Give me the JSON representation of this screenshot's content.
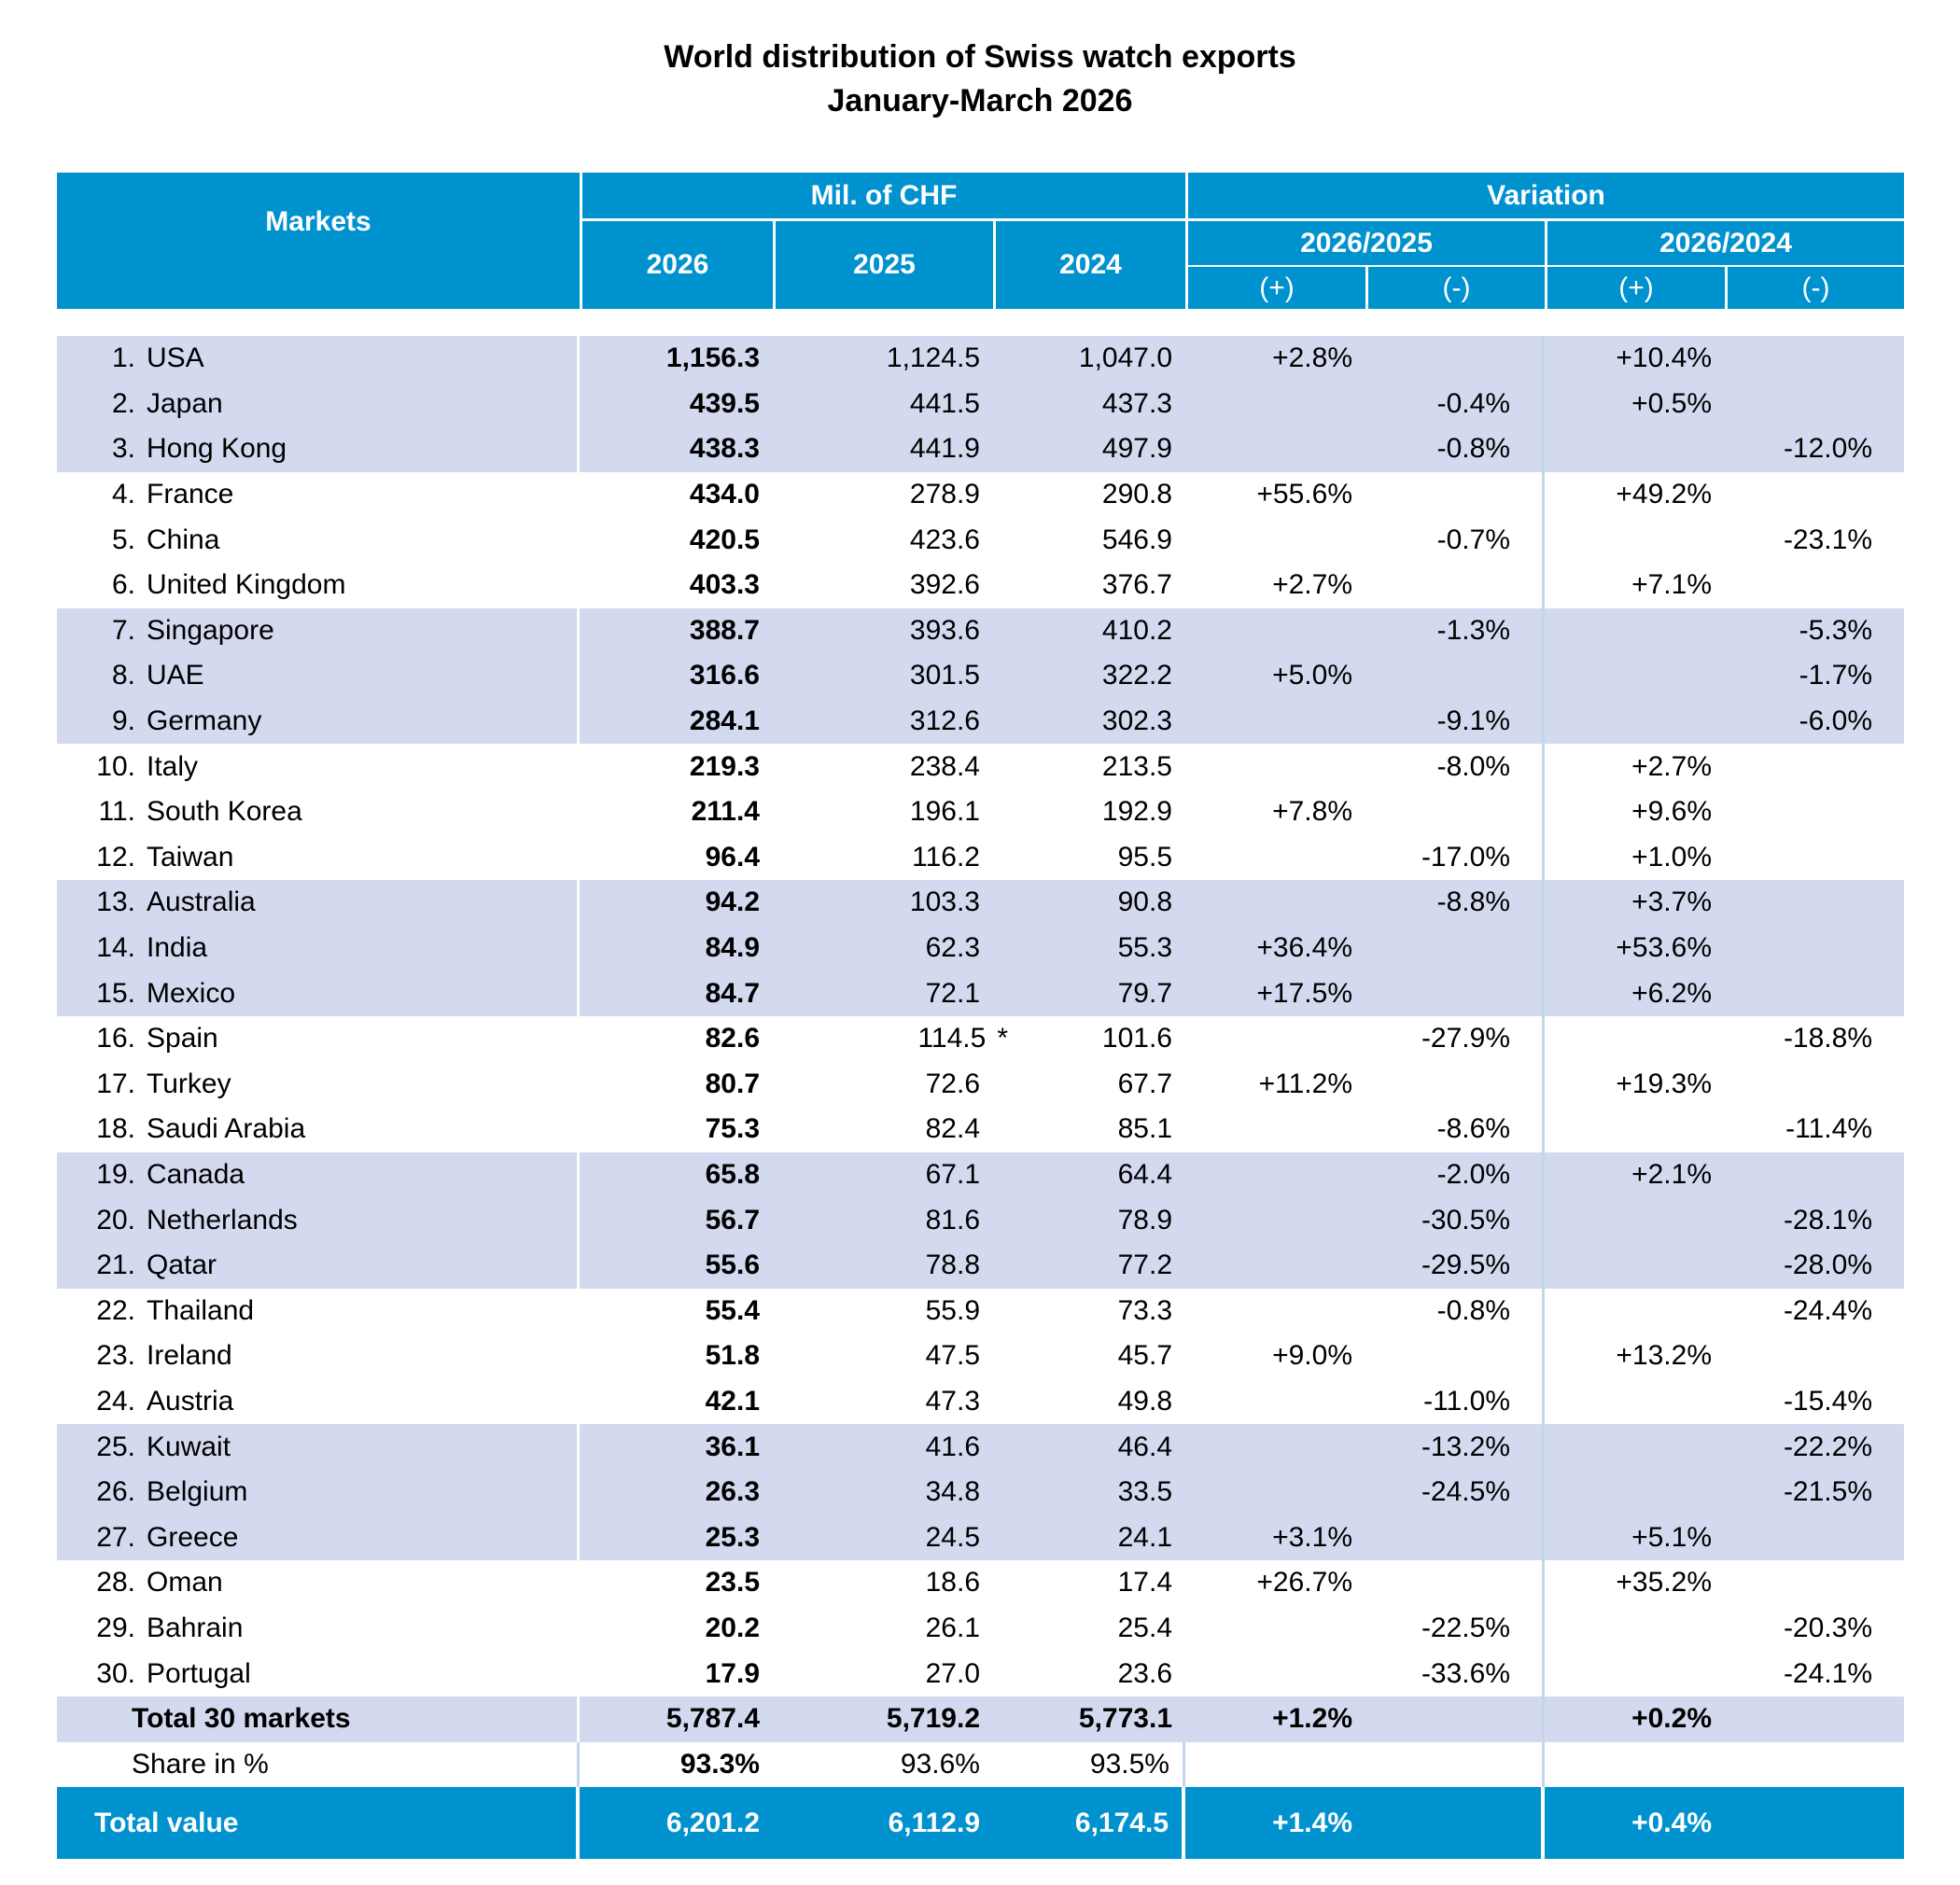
{
  "title": "World distribution of Swiss watch exports",
  "subtitle": "January-March 2026",
  "header": {
    "markets": "Markets",
    "mil_chf": "Mil. of CHF",
    "variation": "Variation",
    "years": [
      "2026",
      "2025",
      "2024"
    ],
    "var1": "2026/2025",
    "var2": "2026/2024",
    "plus": "(+)",
    "minus": "(-)"
  },
  "rows": [
    [
      "1.",
      "USA",
      "1,156.3",
      "1,124.5",
      "1,047.0",
      "+2.8%",
      "",
      "+10.4%",
      ""
    ],
    [
      "2.",
      "Japan",
      "439.5",
      "441.5",
      "437.3",
      "",
      "-0.4%",
      "+0.5%",
      ""
    ],
    [
      "3.",
      "Hong Kong",
      "438.3",
      "441.9",
      "497.9",
      "",
      "-0.8%",
      "",
      "-12.0%"
    ],
    [
      "4.",
      "France",
      "434.0",
      "278.9",
      "290.8",
      "+55.6%",
      "",
      "+49.2%",
      ""
    ],
    [
      "5.",
      "China",
      "420.5",
      "423.6",
      "546.9",
      "",
      "-0.7%",
      "",
      "-23.1%"
    ],
    [
      "6.",
      "United Kingdom",
      "403.3",
      "392.6",
      "376.7",
      "+2.7%",
      "",
      "+7.1%",
      ""
    ],
    [
      "7.",
      "Singapore",
      "388.7",
      "393.6",
      "410.2",
      "",
      "-1.3%",
      "",
      "-5.3%"
    ],
    [
      "8.",
      "UAE",
      "316.6",
      "301.5",
      "322.2",
      "+5.0%",
      "",
      "",
      "-1.7%"
    ],
    [
      "9.",
      "Germany",
      "284.1",
      "312.6",
      "302.3",
      "",
      "-9.1%",
      "",
      "-6.0%"
    ],
    [
      "10.",
      "Italy",
      "219.3",
      "238.4",
      "213.5",
      "",
      "-8.0%",
      "+2.7%",
      ""
    ],
    [
      "11.",
      "South Korea",
      "211.4",
      "196.1",
      "192.9",
      "+7.8%",
      "",
      "+9.6%",
      ""
    ],
    [
      "12.",
      "Taiwan",
      "96.4",
      "116.2",
      "95.5",
      "",
      "-17.0%",
      "+1.0%",
      ""
    ],
    [
      "13.",
      "Australia",
      "94.2",
      "103.3",
      "90.8",
      "",
      "-8.8%",
      "+3.7%",
      ""
    ],
    [
      "14.",
      "India",
      "84.9",
      "62.3",
      "55.3",
      "+36.4%",
      "",
      "+53.6%",
      ""
    ],
    [
      "15.",
      "Mexico",
      "84.7",
      "72.1",
      "79.7",
      "+17.5%",
      "",
      "+6.2%",
      ""
    ],
    [
      "16.",
      "Spain",
      "82.6",
      "114.5",
      "101.6",
      "",
      "-27.9%",
      "",
      "-18.8%"
    ],
    [
      "17.",
      "Turkey",
      "80.7",
      "72.6",
      "67.7",
      "+11.2%",
      "",
      "+19.3%",
      ""
    ],
    [
      "18.",
      "Saudi Arabia",
      "75.3",
      "82.4",
      "85.1",
      "",
      "-8.6%",
      "",
      "-11.4%"
    ],
    [
      "19.",
      "Canada",
      "65.8",
      "67.1",
      "64.4",
      "",
      "-2.0%",
      "+2.1%",
      ""
    ],
    [
      "20.",
      "Netherlands",
      "56.7",
      "81.6",
      "78.9",
      "",
      "-30.5%",
      "",
      "-28.1%"
    ],
    [
      "21.",
      "Qatar",
      "55.6",
      "78.8",
      "77.2",
      "",
      "-29.5%",
      "",
      "-28.0%"
    ],
    [
      "22.",
      "Thailand",
      "55.4",
      "55.9",
      "73.3",
      "",
      "-0.8%",
      "",
      "-24.4%"
    ],
    [
      "23.",
      "Ireland",
      "51.8",
      "47.5",
      "45.7",
      "+9.0%",
      "",
      "+13.2%",
      ""
    ],
    [
      "24.",
      "Austria",
      "42.1",
      "47.3",
      "49.8",
      "",
      "-11.0%",
      "",
      "-15.4%"
    ],
    [
      "25.",
      "Kuwait",
      "36.1",
      "41.6",
      "46.4",
      "",
      "-13.2%",
      "",
      "-22.2%"
    ],
    [
      "26.",
      "Belgium",
      "26.3",
      "34.8",
      "33.5",
      "",
      "-24.5%",
      "",
      "-21.5%"
    ],
    [
      "27.",
      "Greece",
      "25.3",
      "24.5",
      "24.1",
      "+3.1%",
      "",
      "+5.1%",
      ""
    ],
    [
      "28.",
      "Oman",
      "23.5",
      "18.6",
      "17.4",
      "+26.7%",
      "",
      "+35.2%",
      ""
    ],
    [
      "29.",
      "Bahrain",
      "20.2",
      "26.1",
      "25.4",
      "",
      "-22.5%",
      "",
      "-20.3%"
    ],
    [
      "30.",
      "Portugal",
      "17.9",
      "27.0",
      "23.6",
      "",
      "-33.6%",
      "",
      "-24.1%"
    ]
  ],
  "spain_note": "*",
  "total30": [
    "Total 30 markets",
    "5,787.4",
    "5,719.2",
    "5,773.1",
    "+1.2%",
    "",
    "+0.2%",
    ""
  ],
  "share": [
    "Share in %",
    "93.3%",
    "93.6%",
    "93.5%",
    "",
    "",
    "",
    ""
  ],
  "total_value": [
    "Total value",
    "6,201.2",
    "6,112.9",
    "6,174.5",
    "+1.4%",
    "",
    "+0.4%",
    ""
  ],
  "colors": {
    "header_blue": "#0092cf",
    "row_shade": "#d3daf0"
  }
}
